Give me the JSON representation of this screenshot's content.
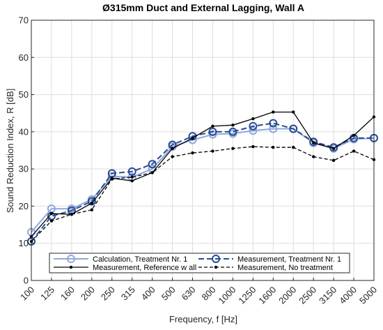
{
  "chart_data": {
    "type": "line",
    "title": "Ø315mm Duct and External Lagging, Wall A",
    "xlabel": "Frequency, f [Hz]",
    "ylabel": "Sound Reduction Index, R [dB]",
    "categories": [
      "100",
      "125",
      "160",
      "200",
      "250",
      "315",
      "400",
      "500",
      "630",
      "800",
      "1000",
      "1250",
      "1600",
      "2000",
      "2500",
      "3150",
      "4000",
      "5000"
    ],
    "ylim": [
      0,
      70
    ],
    "yticks": [
      0,
      10,
      20,
      30,
      40,
      50,
      60,
      70
    ],
    "grid": true,
    "legend_position": "bottom",
    "series": [
      {
        "name": "Calculation, Treatment Nr. 1",
        "color": "#8fa8dc",
        "style": "solid",
        "marker": "circle-large",
        "values": [
          13.0,
          19.3,
          19.3,
          21.8,
          28.0,
          27.8,
          30.0,
          36.0,
          37.8,
          39.3,
          39.5,
          40.3,
          40.8,
          40.8,
          37.0,
          35.5,
          38.0,
          38.3
        ]
      },
      {
        "name": "Measurement, Treatment Nr. 1",
        "color": "#284b91",
        "style": "dashed",
        "marker": "circle-open",
        "values": [
          10.5,
          17.3,
          18.8,
          21.3,
          28.8,
          29.3,
          31.3,
          36.5,
          38.8,
          40.0,
          40.0,
          41.5,
          42.3,
          40.8,
          37.3,
          35.8,
          38.3,
          38.3
        ]
      },
      {
        "name": "Measurement, Reference w all",
        "color": "#000000",
        "style": "solid",
        "marker": "dot",
        "values": [
          11.8,
          18.0,
          17.8,
          20.8,
          27.5,
          26.8,
          29.0,
          35.5,
          38.3,
          41.5,
          41.8,
          43.5,
          45.3,
          45.3,
          37.0,
          35.5,
          39.0,
          44.0
        ]
      },
      {
        "name": "Measurement, No treatment",
        "color": "#000000",
        "style": "dashed",
        "marker": "dot",
        "values": [
          10.5,
          16.0,
          17.8,
          19.0,
          27.3,
          27.8,
          29.0,
          33.3,
          34.3,
          34.8,
          35.5,
          36.0,
          35.8,
          35.8,
          33.3,
          32.3,
          34.8,
          32.5
        ]
      }
    ]
  }
}
